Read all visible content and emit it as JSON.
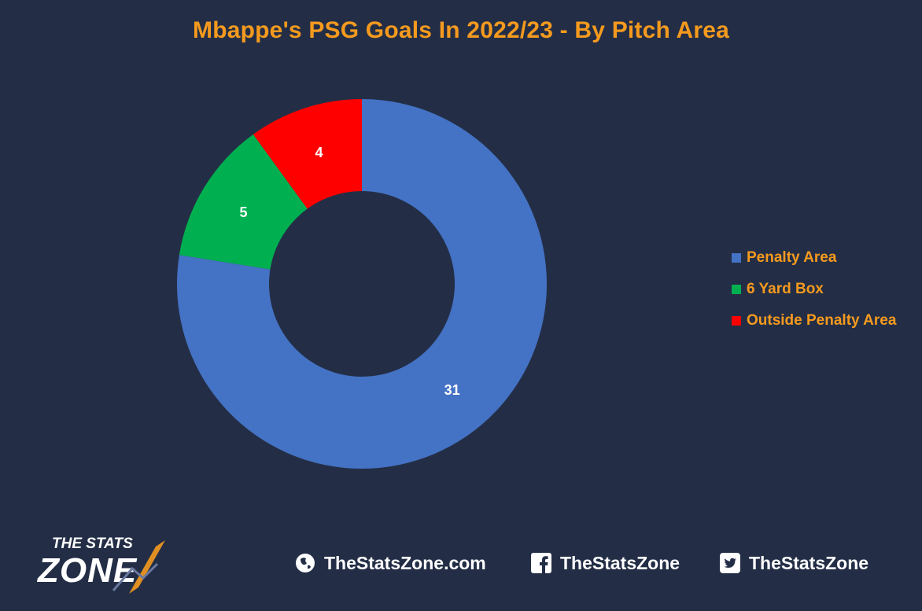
{
  "chart_data": {
    "type": "pie",
    "donut": true,
    "title": "Mbappe's PSG Goals In 2022/23 - By Pitch Area",
    "categories": [
      "Penalty Area",
      "6 Yard Box",
      "Outside Penalty Area"
    ],
    "values": [
      31,
      5,
      4
    ],
    "data_labels": [
      "31",
      "5",
      "4"
    ],
    "colors": [
      "#4472c4",
      "#00b050",
      "#ff0000"
    ],
    "legend": "right"
  },
  "footer": {
    "logo": {
      "line1": "THE STATS",
      "line2": "ZONE"
    },
    "website": {
      "icon": "globe-icon",
      "text": "TheStatsZone.com"
    },
    "facebook": {
      "icon": "facebook-icon",
      "text": "TheStatsZone"
    },
    "twitter": {
      "icon": "twitter-icon",
      "text": "TheStatsZone"
    }
  },
  "colors": {
    "background": "#232e46",
    "title": "#f59a1e",
    "footer_text": "#ffffff"
  }
}
